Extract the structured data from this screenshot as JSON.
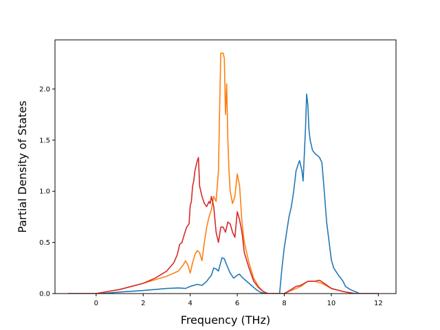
{
  "chart_data": {
    "type": "line",
    "title": "",
    "xlabel": "Frequency (THz)",
    "ylabel": "Partial Density of States",
    "xlim": [
      -1.75,
      12.75
    ],
    "ylim": [
      0,
      2.48
    ],
    "xticks": [
      0,
      2,
      4,
      6,
      8,
      10,
      12
    ],
    "yticks": [
      0.0,
      0.5,
      1.0,
      1.5,
      2.0
    ],
    "xtick_labels": [
      "0",
      "2",
      "4",
      "6",
      "8",
      "10",
      "12"
    ],
    "ytick_labels": [
      "0.0",
      "0.5",
      "1.0",
      "1.5",
      "2.0"
    ],
    "grid": false,
    "legend": "none",
    "series": [
      {
        "color": "#1f77b4",
        "x": [
          -1.2,
          0,
          0.5,
          1,
          2,
          3,
          3.5,
          3.8,
          4.0,
          4.3,
          4.5,
          4.7,
          4.9,
          5.0,
          5.1,
          5.2,
          5.35,
          5.45,
          5.55,
          5.7,
          5.85,
          6.0,
          6.1,
          6.2,
          6.4,
          6.6,
          6.8,
          7.0,
          7.2,
          7.5,
          7.8,
          7.9,
          8.0,
          8.1,
          8.2,
          8.3,
          8.4,
          8.5,
          8.6,
          8.65,
          8.75,
          8.8,
          8.9,
          8.95,
          9.0,
          9.05,
          9.1,
          9.2,
          9.3,
          9.5,
          9.6,
          9.7,
          9.8,
          10.0,
          10.1,
          10.3,
          10.5,
          10.6,
          10.8,
          11.0,
          11.2,
          12.0
        ],
        "y": [
          0,
          0,
          0.005,
          0.015,
          0.03,
          0.05,
          0.055,
          0.05,
          0.07,
          0.09,
          0.08,
          0.12,
          0.18,
          0.25,
          0.24,
          0.22,
          0.35,
          0.34,
          0.28,
          0.2,
          0.15,
          0.18,
          0.19,
          0.16,
          0.12,
          0.08,
          0.04,
          0.01,
          0,
          0,
          0,
          0.25,
          0.45,
          0.6,
          0.75,
          0.85,
          1.0,
          1.2,
          1.27,
          1.3,
          1.2,
          1.1,
          1.6,
          1.95,
          1.85,
          1.6,
          1.5,
          1.4,
          1.37,
          1.33,
          1.28,
          1.0,
          0.7,
          0.33,
          0.25,
          0.18,
          0.12,
          0.07,
          0.04,
          0.02,
          0,
          0
        ]
      },
      {
        "color": "#ff7f0e",
        "x": [
          -1.2,
          0,
          0.5,
          1,
          2,
          3,
          3.5,
          3.7,
          3.8,
          3.9,
          4.0,
          4.1,
          4.2,
          4.3,
          4.4,
          4.5,
          4.6,
          4.7,
          4.8,
          4.9,
          5.0,
          5.1,
          5.2,
          5.25,
          5.3,
          5.4,
          5.45,
          5.5,
          5.55,
          5.6,
          5.65,
          5.7,
          5.8,
          5.9,
          6.0,
          6.1,
          6.2,
          6.3,
          6.5,
          6.7,
          6.9,
          7.1,
          7.3,
          8.0,
          8.2,
          8.5,
          8.7,
          9.0,
          9.3,
          9.6,
          10.0,
          10.5,
          11.0,
          12.0
        ],
        "y": [
          0,
          0,
          0.02,
          0.04,
          0.1,
          0.17,
          0.22,
          0.28,
          0.32,
          0.28,
          0.2,
          0.3,
          0.38,
          0.42,
          0.4,
          0.32,
          0.5,
          0.65,
          0.75,
          0.82,
          0.95,
          0.9,
          1.2,
          1.8,
          2.35,
          2.35,
          2.3,
          1.75,
          2.05,
          1.5,
          1.2,
          1.0,
          0.88,
          0.95,
          1.17,
          1.05,
          0.7,
          0.5,
          0.3,
          0.15,
          0.07,
          0.02,
          0,
          0,
          0.02,
          0.05,
          0.07,
          0.12,
          0.12,
          0.1,
          0.05,
          0.02,
          0,
          0
        ]
      },
      {
        "color": "#d62728",
        "x": [
          -1.2,
          0,
          0.5,
          1,
          2,
          2.5,
          3,
          3.3,
          3.45,
          3.55,
          3.65,
          3.75,
          3.85,
          3.95,
          4.0,
          4.05,
          4.1,
          4.15,
          4.2,
          4.3,
          4.35,
          4.4,
          4.5,
          4.6,
          4.7,
          4.8,
          4.85,
          4.9,
          5.0,
          5.1,
          5.2,
          5.3,
          5.4,
          5.5,
          5.6,
          5.7,
          5.8,
          5.9,
          6.0,
          6.1,
          6.2,
          6.3,
          6.5,
          6.7,
          6.9,
          7.1,
          7.3,
          8.0,
          8.3,
          8.5,
          8.7,
          9.0,
          9.3,
          9.5,
          9.7,
          10.0,
          10.5,
          11.0,
          12.0
        ],
        "y": [
          0,
          0,
          0.02,
          0.04,
          0.1,
          0.15,
          0.22,
          0.3,
          0.38,
          0.48,
          0.5,
          0.58,
          0.65,
          0.68,
          0.86,
          0.9,
          1.05,
          1.1,
          1.2,
          1.3,
          1.33,
          1.05,
          0.95,
          0.88,
          0.85,
          0.9,
          0.88,
          0.95,
          0.85,
          0.6,
          0.5,
          0.65,
          0.65,
          0.6,
          0.7,
          0.68,
          0.6,
          0.55,
          0.8,
          0.72,
          0.6,
          0.4,
          0.25,
          0.12,
          0.06,
          0.02,
          0,
          0,
          0.04,
          0.07,
          0.08,
          0.12,
          0.12,
          0.13,
          0.1,
          0.05,
          0.02,
          0,
          0
        ]
      }
    ]
  }
}
